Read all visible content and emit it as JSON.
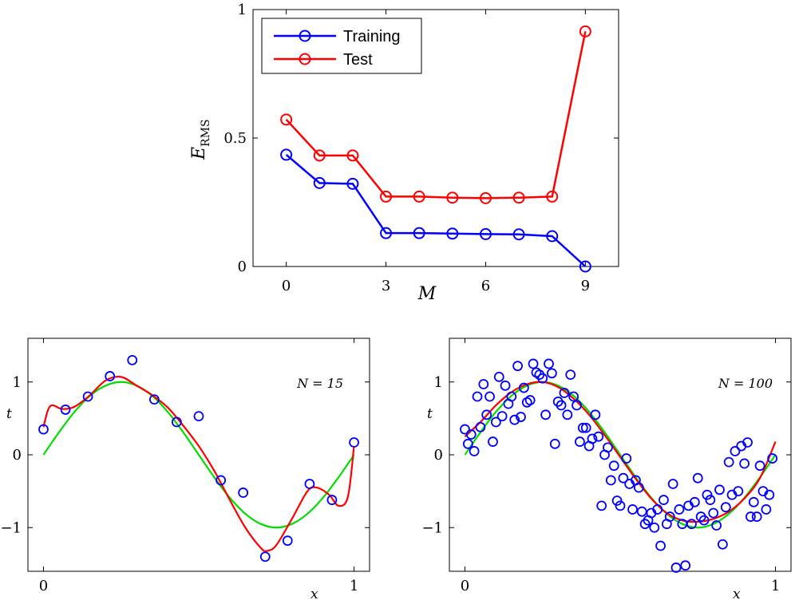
{
  "chart_data": [
    {
      "type": "line",
      "xlabel": "M",
      "ylabel": "E",
      "ylabel_sub": "RMS",
      "xlim": [
        -1,
        10
      ],
      "ylim": [
        0,
        1
      ],
      "xticks": [
        0,
        3,
        6,
        9
      ],
      "xtick_labels": [
        "0",
        "3",
        "6",
        "9"
      ],
      "yticks": [
        0,
        0.5,
        1
      ],
      "ytick_labels": [
        "0",
        "0.5",
        "1"
      ],
      "legend_position": "top-left",
      "x": [
        0,
        1,
        2,
        3,
        4,
        5,
        6,
        7,
        8,
        9
      ],
      "series": [
        {
          "name": "Training",
          "color": "#0000ff",
          "values": [
            0.435,
            0.325,
            0.322,
            0.13,
            0.13,
            0.128,
            0.126,
            0.125,
            0.118,
            0.0
          ]
        },
        {
          "name": "Test",
          "color": "#ff0000",
          "values": [
            0.572,
            0.432,
            0.432,
            0.272,
            0.272,
            0.268,
            0.266,
            0.268,
            0.272,
            0.915
          ]
        }
      ]
    },
    {
      "type": "scatter",
      "annotation": "N = 15",
      "xlabel": "x",
      "ylabel": "t",
      "xlim": [
        -0.05,
        1.05
      ],
      "ylim": [
        -1.6,
        1.6
      ],
      "xticks": [
        0,
        1
      ],
      "xtick_labels": [
        "0",
        "1"
      ],
      "yticks": [
        -1,
        0,
        1
      ],
      "ytick_labels": [
        "−1",
        "0",
        "1"
      ],
      "points": {
        "x": [
          0.0,
          0.071,
          0.143,
          0.214,
          0.286,
          0.357,
          0.429,
          0.5,
          0.571,
          0.643,
          0.714,
          0.786,
          0.857,
          0.929,
          1.0
        ],
        "y": [
          0.35,
          0.62,
          0.8,
          1.08,
          1.3,
          0.76,
          0.45,
          0.53,
          -0.35,
          -0.52,
          -1.4,
          -1.18,
          -0.4,
          -0.62,
          0.17
        ],
        "color": "#0000ff"
      },
      "curves": [
        {
          "color": "#00dd00",
          "x": [
            0,
            0.05,
            0.1,
            0.15,
            0.2,
            0.25,
            0.3,
            0.35,
            0.4,
            0.45,
            0.5,
            0.55,
            0.6,
            0.65,
            0.7,
            0.75,
            0.8,
            0.85,
            0.9,
            0.95,
            1.0
          ],
          "y": [
            0.0,
            0.31,
            0.59,
            0.81,
            0.95,
            1.0,
            0.95,
            0.81,
            0.59,
            0.31,
            0.0,
            -0.31,
            -0.59,
            -0.81,
            -0.95,
            -1.0,
            -0.95,
            -0.81,
            -0.59,
            -0.31,
            0.0
          ]
        },
        {
          "color": "#ff0000",
          "x": [
            0.0,
            0.015,
            0.03,
            0.06,
            0.1,
            0.15,
            0.2,
            0.25,
            0.3,
            0.35,
            0.4,
            0.45,
            0.5,
            0.55,
            0.6,
            0.65,
            0.7,
            0.72,
            0.75,
            0.8,
            0.85,
            0.88,
            0.92,
            0.95,
            0.98,
            1.0
          ],
          "y": [
            0.38,
            0.62,
            0.68,
            0.63,
            0.66,
            0.82,
            1.02,
            1.07,
            0.95,
            0.82,
            0.65,
            0.4,
            0.12,
            -0.22,
            -0.62,
            -1.0,
            -1.28,
            -1.32,
            -1.24,
            -0.88,
            -0.5,
            -0.45,
            -0.55,
            -0.7,
            -0.58,
            0.12
          ]
        }
      ]
    },
    {
      "type": "scatter",
      "annotation": "N = 100",
      "xlabel": "x",
      "ylabel": "t",
      "xlim": [
        -0.05,
        1.05
      ],
      "ylim": [
        -1.6,
        1.6
      ],
      "xticks": [
        0,
        1
      ],
      "xtick_labels": [
        "0",
        "1"
      ],
      "yticks": [
        -1,
        0,
        1
      ],
      "ytick_labels": [
        "−1",
        "0",
        "1"
      ],
      "points": {
        "x": [
          0.0,
          0.01,
          0.02,
          0.03,
          0.04,
          0.05,
          0.06,
          0.07,
          0.08,
          0.09,
          0.1,
          0.11,
          0.12,
          0.13,
          0.14,
          0.15,
          0.16,
          0.17,
          0.18,
          0.19,
          0.2,
          0.21,
          0.22,
          0.23,
          0.24,
          0.25,
          0.26,
          0.27,
          0.28,
          0.29,
          0.3,
          0.31,
          0.32,
          0.33,
          0.34,
          0.35,
          0.36,
          0.37,
          0.38,
          0.39,
          0.4,
          0.41,
          0.42,
          0.43,
          0.44,
          0.45,
          0.46,
          0.47,
          0.48,
          0.49,
          0.5,
          0.51,
          0.52,
          0.53,
          0.54,
          0.55,
          0.56,
          0.57,
          0.58,
          0.59,
          0.6,
          0.61,
          0.62,
          0.63,
          0.64,
          0.65,
          0.66,
          0.67,
          0.68,
          0.69,
          0.7,
          0.71,
          0.72,
          0.73,
          0.74,
          0.75,
          0.76,
          0.77,
          0.78,
          0.79,
          0.8,
          0.81,
          0.82,
          0.83,
          0.84,
          0.85,
          0.86,
          0.87,
          0.88,
          0.89,
          0.9,
          0.91,
          0.92,
          0.93,
          0.94,
          0.95,
          0.96,
          0.97,
          0.98,
          0.99
        ],
        "y": [
          0.35,
          0.15,
          0.28,
          0.05,
          0.8,
          0.38,
          0.97,
          0.55,
          0.8,
          0.18,
          0.45,
          1.07,
          0.53,
          0.95,
          0.7,
          0.8,
          0.48,
          1.22,
          0.52,
          0.92,
          0.72,
          0.75,
          1.25,
          1.13,
          1.1,
          1.05,
          0.55,
          1.25,
          1.12,
          0.15,
          0.73,
          0.68,
          0.85,
          0.55,
          1.1,
          0.8,
          0.68,
          0.18,
          0.37,
          0.37,
          0.12,
          0.22,
          0.55,
          0.25,
          -0.7,
          0.0,
          0.1,
          -0.35,
          -0.15,
          -0.63,
          -0.7,
          -0.32,
          -0.05,
          -0.4,
          -0.75,
          -0.35,
          -0.45,
          -0.78,
          -0.95,
          -0.9,
          -0.8,
          -1.0,
          -0.75,
          -1.25,
          -0.62,
          -0.95,
          -0.85,
          -0.4,
          -1.55,
          -0.75,
          -0.95,
          -1.52,
          -0.7,
          -0.95,
          -0.65,
          -0.32,
          -0.85,
          -0.9,
          -0.55,
          -0.62,
          -0.8,
          -0.97,
          -0.48,
          -1.23,
          -0.72,
          -0.1,
          -0.55,
          0.05,
          -0.5,
          0.12,
          -0.12,
          0.17,
          -0.85,
          -0.65,
          -0.85,
          -0.15,
          -0.5,
          -0.75,
          -0.55,
          -0.05
        ],
        "color": "#0000ff"
      },
      "curves": [
        {
          "color": "#00dd00",
          "x": [
            0,
            0.05,
            0.1,
            0.15,
            0.2,
            0.25,
            0.3,
            0.35,
            0.4,
            0.45,
            0.5,
            0.55,
            0.6,
            0.65,
            0.7,
            0.75,
            0.8,
            0.85,
            0.9,
            0.95,
            1.0
          ],
          "y": [
            0.0,
            0.31,
            0.59,
            0.81,
            0.95,
            1.0,
            0.95,
            0.81,
            0.59,
            0.31,
            0.0,
            -0.31,
            -0.59,
            -0.81,
            -0.95,
            -1.0,
            -0.95,
            -0.81,
            -0.59,
            -0.31,
            0.0
          ]
        },
        {
          "color": "#ff0000",
          "x": [
            0,
            0.05,
            0.1,
            0.15,
            0.2,
            0.25,
            0.3,
            0.35,
            0.4,
            0.45,
            0.5,
            0.55,
            0.6,
            0.65,
            0.7,
            0.75,
            0.8,
            0.85,
            0.9,
            0.95,
            1.0
          ],
          "y": [
            0.25,
            0.45,
            0.68,
            0.86,
            0.97,
            1.0,
            0.93,
            0.77,
            0.55,
            0.27,
            -0.03,
            -0.33,
            -0.6,
            -0.8,
            -0.9,
            -0.92,
            -0.88,
            -0.78,
            -0.6,
            -0.32,
            0.18
          ]
        }
      ]
    }
  ]
}
